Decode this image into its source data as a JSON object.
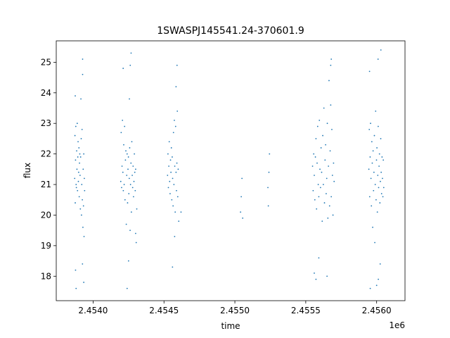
{
  "chart_data": {
    "type": "scatter",
    "title": "1SWASPJ145541.24-370601.9",
    "xlabel": "time",
    "ylabel": "flux",
    "x_offset_label": "1e6",
    "xlim": [
      2453740,
      2456200
    ],
    "ylim": [
      17.2,
      25.7
    ],
    "x_ticks": [
      2454000,
      2454500,
      2455000,
      2455500,
      2456000
    ],
    "x_tick_labels": [
      "2.4540",
      "2.4545",
      "2.4550",
      "2.4555",
      "2.4560"
    ],
    "y_ticks": [
      18,
      19,
      20,
      21,
      22,
      23,
      24,
      25
    ],
    "y_tick_labels": [
      "18",
      "19",
      "20",
      "21",
      "22",
      "23",
      "24",
      "25"
    ],
    "grid": false,
    "marker_color": "#1f77b4",
    "series": [
      {
        "points": [
          [
            2453870,
            21.2
          ],
          [
            2453872,
            22.6
          ],
          [
            2453874,
            20.4
          ],
          [
            2453876,
            21.8
          ],
          [
            2453878,
            22.9
          ],
          [
            2453880,
            21.0
          ],
          [
            2453882,
            20.9
          ],
          [
            2453884,
            22.1
          ],
          [
            2453886,
            21.5
          ],
          [
            2453888,
            23.0
          ],
          [
            2453890,
            20.8
          ],
          [
            2453892,
            21.9
          ],
          [
            2453894,
            22.4
          ],
          [
            2453896,
            21.1
          ],
          [
            2453898,
            21.4
          ],
          [
            2453900,
            22.2
          ],
          [
            2453902,
            20.6
          ],
          [
            2453904,
            21.7
          ],
          [
            2453906,
            22.0
          ],
          [
            2453908,
            21.3
          ],
          [
            2453910,
            20.2
          ],
          [
            2453912,
            21.9
          ],
          [
            2453914,
            23.8
          ],
          [
            2453916,
            22.5
          ],
          [
            2453918,
            20.0
          ],
          [
            2453920,
            21.0
          ],
          [
            2453922,
            22.8
          ],
          [
            2453924,
            20.5
          ],
          [
            2453926,
            24.6
          ],
          [
            2453928,
            19.6
          ],
          [
            2453930,
            21.5
          ],
          [
            2453932,
            20.3
          ],
          [
            2453934,
            22.0
          ],
          [
            2453936,
            19.3
          ],
          [
            2453938,
            21.2
          ],
          [
            2453940,
            20.8
          ],
          [
            2453876,
            18.2
          ],
          [
            2453880,
            17.6
          ],
          [
            2453925,
            18.4
          ],
          [
            2453934,
            17.8
          ],
          [
            2453926,
            25.1
          ],
          [
            2453874,
            23.9
          ],
          [
            2454195,
            21.1
          ],
          [
            2454198,
            22.7
          ],
          [
            2454201,
            20.9
          ],
          [
            2454204,
            21.6
          ],
          [
            2454207,
            23.1
          ],
          [
            2454210,
            21.4
          ],
          [
            2454213,
            20.8
          ],
          [
            2454216,
            22.3
          ],
          [
            2454219,
            21.0
          ],
          [
            2454222,
            22.9
          ],
          [
            2454225,
            20.5
          ],
          [
            2454228,
            21.8
          ],
          [
            2454231,
            22.1
          ],
          [
            2454234,
            19.7
          ],
          [
            2454237,
            21.3
          ],
          [
            2454240,
            22.0
          ],
          [
            2454243,
            20.4
          ],
          [
            2454246,
            21.5
          ],
          [
            2454249,
            21.9
          ],
          [
            2454252,
            20.7
          ],
          [
            2454255,
            21.2
          ],
          [
            2454258,
            22.2
          ],
          [
            2454261,
            19.5
          ],
          [
            2454264,
            21.0
          ],
          [
            2454267,
            21.7
          ],
          [
            2454270,
            20.1
          ],
          [
            2454273,
            22.4
          ],
          [
            2454276,
            21.3
          ],
          [
            2454279,
            20.9
          ],
          [
            2454282,
            21.6
          ],
          [
            2454285,
            20.6
          ],
          [
            2454288,
            21.1
          ],
          [
            2454291,
            22.0
          ],
          [
            2454294,
            21.4
          ],
          [
            2454297,
            20.8
          ],
          [
            2454300,
            21.5
          ],
          [
            2454250,
            18.5
          ],
          [
            2454240,
            17.6
          ],
          [
            2454256,
            23.8
          ],
          [
            2454262,
            24.9
          ],
          [
            2454268,
            25.3
          ],
          [
            2454212,
            24.8
          ],
          [
            2454300,
            19.4
          ],
          [
            2454308,
            20.2
          ],
          [
            2454304,
            19.1
          ],
          [
            2454525,
            21.3
          ],
          [
            2454528,
            22.0
          ],
          [
            2454531,
            20.9
          ],
          [
            2454534,
            21.6
          ],
          [
            2454537,
            22.4
          ],
          [
            2454540,
            21.1
          ],
          [
            2454543,
            20.7
          ],
          [
            2454546,
            21.8
          ],
          [
            2454549,
            21.4
          ],
          [
            2454552,
            22.2
          ],
          [
            2454555,
            20.5
          ],
          [
            2454558,
            21.9
          ],
          [
            2454561,
            21.2
          ],
          [
            2454564,
            20.3
          ],
          [
            2454567,
            22.7
          ],
          [
            2454570,
            21.0
          ],
          [
            2454573,
            23.1
          ],
          [
            2454576,
            21.6
          ],
          [
            2454579,
            20.1
          ],
          [
            2454582,
            22.9
          ],
          [
            2454585,
            21.4
          ],
          [
            2454588,
            20.8
          ],
          [
            2454591,
            21.7
          ],
          [
            2454594,
            23.4
          ],
          [
            2454597,
            20.6
          ],
          [
            2454600,
            21.5
          ],
          [
            2454585,
            24.2
          ],
          [
            2454592,
            24.9
          ],
          [
            2454560,
            18.3
          ],
          [
            2454575,
            19.3
          ],
          [
            2454620,
            20.1
          ],
          [
            2454604,
            19.8
          ],
          [
            2455040,
            20.1
          ],
          [
            2455045,
            20.6
          ],
          [
            2455050,
            21.2
          ],
          [
            2455055,
            19.9
          ],
          [
            2455233,
            20.9
          ],
          [
            2455236,
            20.3
          ],
          [
            2455240,
            21.4
          ],
          [
            2455244,
            22.0
          ],
          [
            2455548,
            21.6
          ],
          [
            2455552,
            20.8
          ],
          [
            2455556,
            22.0
          ],
          [
            2455560,
            21.3
          ],
          [
            2455564,
            20.5
          ],
          [
            2455568,
            21.9
          ],
          [
            2455572,
            22.5
          ],
          [
            2455576,
            20.2
          ],
          [
            2455580,
            21.7
          ],
          [
            2455584,
            22.9
          ],
          [
            2455588,
            21.0
          ],
          [
            2455592,
            20.6
          ],
          [
            2455596,
            23.1
          ],
          [
            2455600,
            21.5
          ],
          [
            2455604,
            20.9
          ],
          [
            2455608,
            22.2
          ],
          [
            2455612,
            21.4
          ],
          [
            2455616,
            19.8
          ],
          [
            2455620,
            22.6
          ],
          [
            2455624,
            21.0
          ],
          [
            2455628,
            23.5
          ],
          [
            2455632,
            20.4
          ],
          [
            2455636,
            21.8
          ],
          [
            2455640,
            22.3
          ],
          [
            2455644,
            20.7
          ],
          [
            2455648,
            21.2
          ],
          [
            2455652,
            23.0
          ],
          [
            2455656,
            19.9
          ],
          [
            2455660,
            21.6
          ],
          [
            2455664,
            24.4
          ],
          [
            2455668,
            20.3
          ],
          [
            2455672,
            22.1
          ],
          [
            2455676,
            23.6
          ],
          [
            2455680,
            20.6
          ],
          [
            2455684,
            22.8
          ],
          [
            2455688,
            21.3
          ],
          [
            2455692,
            20.0
          ],
          [
            2455696,
            21.7
          ],
          [
            2455700,
            21.1
          ],
          [
            2455560,
            18.1
          ],
          [
            2455572,
            17.9
          ],
          [
            2455592,
            18.6
          ],
          [
            2455650,
            18.0
          ],
          [
            2455676,
            24.9
          ],
          [
            2455680,
            25.1
          ],
          [
            2455945,
            21.5
          ],
          [
            2455948,
            22.8
          ],
          [
            2455951,
            20.6
          ],
          [
            2455954,
            21.9
          ],
          [
            2455957,
            23.0
          ],
          [
            2455960,
            21.2
          ],
          [
            2455963,
            20.3
          ],
          [
            2455966,
            22.4
          ],
          [
            2455969,
            21.7
          ],
          [
            2455972,
            19.6
          ],
          [
            2455975,
            22.1
          ],
          [
            2455978,
            20.8
          ],
          [
            2455981,
            21.4
          ],
          [
            2455984,
            22.6
          ],
          [
            2455987,
            19.1
          ],
          [
            2455990,
            21.0
          ],
          [
            2455993,
            23.4
          ],
          [
            2455996,
            20.5
          ],
          [
            2455999,
            21.8
          ],
          [
            2456002,
            22.2
          ],
          [
            2456005,
            20.1
          ],
          [
            2456008,
            21.3
          ],
          [
            2456011,
            22.9
          ],
          [
            2456014,
            20.9
          ],
          [
            2456017,
            21.6
          ],
          [
            2456020,
            22.0
          ],
          [
            2456023,
            20.4
          ],
          [
            2456026,
            21.1
          ],
          [
            2456029,
            22.5
          ],
          [
            2456032,
            21.4
          ],
          [
            2456035,
            20.7
          ],
          [
            2456038,
            21.9
          ],
          [
            2456041,
            21.2
          ],
          [
            2456044,
            20.6
          ],
          [
            2456047,
            21.8
          ],
          [
            2456050,
            20.9
          ],
          [
            2455950,
            24.7
          ],
          [
            2456010,
            25.1
          ],
          [
            2456030,
            25.4
          ],
          [
            2455955,
            17.6
          ],
          [
            2456000,
            17.7
          ],
          [
            2456012,
            17.9
          ],
          [
            2456025,
            18.4
          ]
        ]
      }
    ]
  }
}
